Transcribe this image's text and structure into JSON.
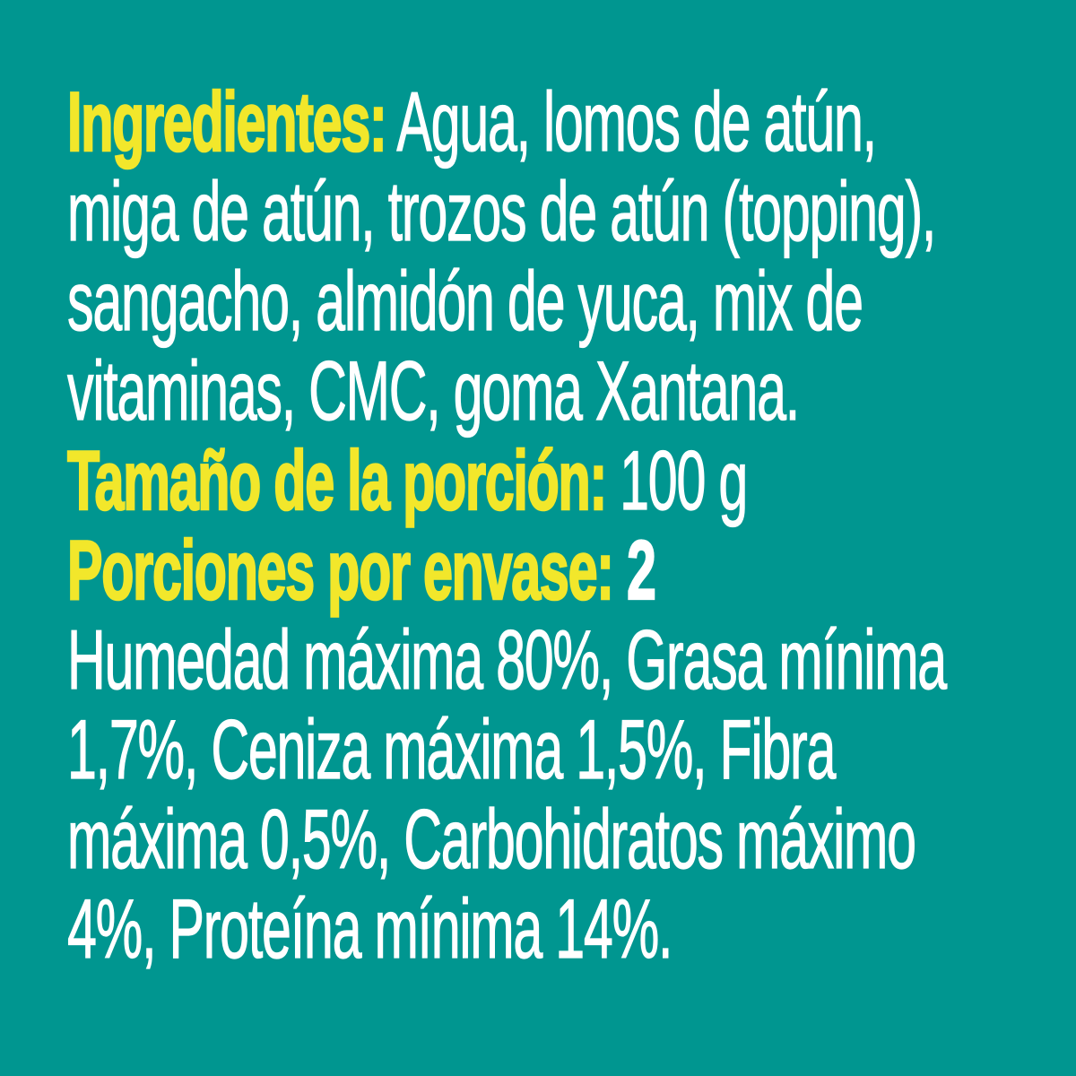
{
  "colors": {
    "background": "#009690",
    "heading_yellow": "#F2E72B",
    "body_white": "#FFFFFF"
  },
  "label": {
    "lines": [
      {
        "segments": [
          {
            "text": "Ingredientes:"
          },
          {
            "text": " Agua, lomos de atún,"
          }
        ]
      },
      {
        "segments": [
          {
            "text": "miga de atún, trozos de atún (topping),"
          }
        ]
      },
      {
        "segments": [
          {
            "text": "sangacho, almidón de yuca, mix de"
          }
        ]
      },
      {
        "segments": [
          {
            "text": "vitaminas, CMC, goma Xantana."
          }
        ]
      },
      {
        "segments": [
          {
            "text": "Tamaño de la porción:"
          },
          {
            "text": " 100 g"
          }
        ]
      },
      {
        "segments": [
          {
            "text": "Porciones por envase:"
          },
          {
            "text": " 2"
          }
        ]
      },
      {
        "segments": [
          {
            "text": "Humedad máxima 80%, Grasa mínima"
          }
        ]
      },
      {
        "segments": [
          {
            "text": "1,7%, Ceniza máxima 1,5%, Fibra"
          }
        ]
      },
      {
        "segments": [
          {
            "text": "máxima 0,5%, Carbohidratos máximo"
          }
        ]
      },
      {
        "segments": [
          {
            "text": "4%, Proteína mínima 14%."
          }
        ]
      }
    ],
    "ingredients": "Agua, lomos de atún, miga de atún, trozos de atún (topping), sangacho, almidón de yuca, mix de vitaminas, CMC, goma Xantana.",
    "serving_size": "100 g",
    "servings_per_container": "2",
    "analysis": "Humedad máxima 80%, Grasa mínima 1,7%, Ceniza máxima 1,5%, Fibra máxima 0,5%, Carbohidratos máximo 4%, Proteína mínima 14%."
  }
}
